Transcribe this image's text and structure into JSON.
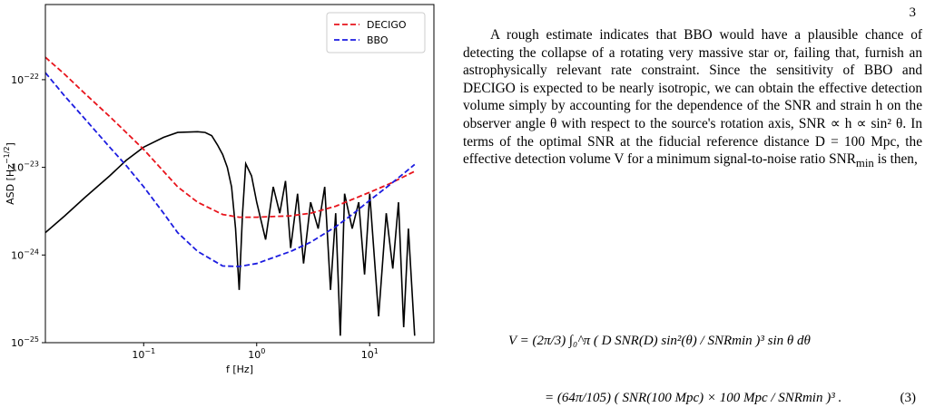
{
  "page_number": "3",
  "chart_data": {
    "type": "line",
    "ylabel": [
      "ASD [Hz",
      "−1/2",
      "]"
    ],
    "xlabel": "f [Hz]",
    "xscale": "log",
    "yscale": "log",
    "xlim": [
      0.0135,
      37
    ],
    "ylim": [
      1e-25,
      7.2e-22
    ],
    "xticks": [
      {
        "value": 0.1,
        "label": "10",
        "exp": "−1"
      },
      {
        "value": 1,
        "label": "10",
        "exp": "0"
      },
      {
        "value": 10,
        "label": "10",
        "exp": "1"
      }
    ],
    "yticks": [
      {
        "value": 1e-25,
        "label": "10",
        "exp": "−25"
      },
      {
        "value": 1e-24,
        "label": "10",
        "exp": "−24"
      },
      {
        "value": 1e-23,
        "label": "10",
        "exp": "−23"
      },
      {
        "value": 1e-22,
        "label": "10",
        "exp": "−22"
      }
    ],
    "legend": "upper right",
    "series": [
      {
        "color": "#000000",
        "style": "solid",
        "x": [
          0.0135,
          0.02,
          0.03,
          0.05,
          0.07,
          0.1,
          0.15,
          0.2,
          0.3,
          0.35,
          0.4,
          0.45,
          0.5,
          0.55,
          0.6,
          0.65,
          0.7,
          0.75,
          0.8,
          0.9,
          1.0,
          1.2,
          1.4,
          1.6,
          1.8,
          2,
          2.3,
          2.6,
          3,
          3.5,
          4,
          4.5,
          5,
          5.5,
          6,
          7,
          8,
          9,
          10,
          12,
          14,
          16,
          18,
          20,
          22,
          25
        ],
        "values": [
          1.8e-24,
          2.8e-24,
          4.5e-24,
          8e-24,
          1.2e-23,
          1.7e-23,
          2.2e-23,
          2.5e-23,
          2.55e-23,
          2.5e-23,
          2.3e-23,
          1.8e-23,
          1.4e-23,
          1e-23,
          6e-24,
          2e-24,
          4e-25,
          3e-24,
          1.1e-23,
          8e-24,
          4e-24,
          1.5e-24,
          6e-24,
          3e-24,
          7e-24,
          1.2e-24,
          5e-24,
          8e-25,
          4e-24,
          2e-24,
          6e-24,
          4e-25,
          3e-24,
          1.2e-25,
          5e-24,
          2e-24,
          4e-24,
          6e-25,
          5e-24,
          2e-25,
          3e-24,
          7e-25,
          4e-24,
          1.5e-25,
          2e-24,
          1.2e-25
        ]
      },
      {
        "name": "DECIGO",
        "color": "#e8141c",
        "style": "dashed",
        "x": [
          0.0135,
          0.02,
          0.03,
          0.05,
          0.07,
          0.1,
          0.15,
          0.2,
          0.3,
          0.5,
          0.7,
          1,
          2,
          3,
          5,
          7,
          10,
          15,
          20,
          25
        ],
        "values": [
          1.8e-22,
          1.15e-22,
          7e-23,
          3.8e-23,
          2.5e-23,
          1.6e-23,
          9e-24,
          6e-24,
          4e-24,
          2.9e-24,
          2.7e-24,
          2.7e-24,
          2.8e-24,
          3e-24,
          3.6e-24,
          4.3e-24,
          5.2e-24,
          6.5e-24,
          7.8e-24,
          9e-24
        ]
      },
      {
        "name": "BBO",
        "color": "#1c1ce0",
        "style": "dashed",
        "x": [
          0.0135,
          0.02,
          0.03,
          0.05,
          0.07,
          0.1,
          0.15,
          0.2,
          0.3,
          0.5,
          0.7,
          1,
          2,
          3,
          5,
          7,
          10,
          15,
          20,
          25
        ],
        "values": [
          1.2e-22,
          6.5e-23,
          3.6e-23,
          1.7e-23,
          1.05e-23,
          6e-24,
          3e-24,
          1.8e-24,
          1.1e-24,
          7.5e-25,
          7.4e-25,
          8e-25,
          1.1e-24,
          1.4e-24,
          2.1e-24,
          2.9e-24,
          4.2e-24,
          6.3e-24,
          8.5e-24,
          1.08e-23
        ]
      }
    ]
  },
  "paragraph": [
    "A rough estimate indicates that BBO would have a plausible chance of detecting the collapse of a rotating very massive star or, failing that, furnish an astrophysically relevant rate constraint. Since the sensitivity of BBO and DECIGO is expected to be nearly isotropic, we can obtain the effective detection volume simply by accounting for the dependence of the SNR and strain h on the observer angle θ with respect to the source's rotation axis, SNR ∝ h ∝ sin² θ. In terms of the optimal SNR at the fiducial reference distance D = 100 Mpc, the effective detection volume V for a minimum signal-to-noise ratio SNR",
    "min",
    " is then,"
  ],
  "equation": {
    "lines": [
      "V = (2π/3) ∫₀^π ( D SNR(D) sin²(θ) / SNRmin )³ sin θ dθ",
      "= (64π/105) ( SNR(100 Mpc) × 100 Mpc / SNRmin )³ ."
    ],
    "number": "(3)"
  }
}
